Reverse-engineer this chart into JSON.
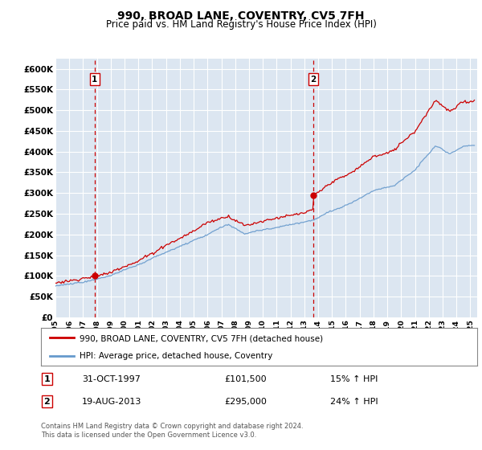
{
  "title": "990, BROAD LANE, COVENTRY, CV5 7FH",
  "subtitle": "Price paid vs. HM Land Registry's House Price Index (HPI)",
  "ylabel_ticks": [
    "£0",
    "£50K",
    "£100K",
    "£150K",
    "£200K",
    "£250K",
    "£300K",
    "£350K",
    "£400K",
    "£450K",
    "£500K",
    "£550K",
    "£600K"
  ],
  "ytick_vals": [
    0,
    50000,
    100000,
    150000,
    200000,
    250000,
    300000,
    350000,
    400000,
    450000,
    500000,
    550000,
    600000
  ],
  "ylim": [
    0,
    625000
  ],
  "xlim_start": 1995.0,
  "xlim_end": 2025.5,
  "background_color": "#dce6f1",
  "grid_color": "#ffffff",
  "sale1_x": 1997.833,
  "sale1_y": 101500,
  "sale2_x": 2013.633,
  "sale2_y": 295000,
  "sale_color": "#cc0000",
  "hpi_color": "#6699cc",
  "legend_label_red": "990, BROAD LANE, COVENTRY, CV5 7FH (detached house)",
  "legend_label_blue": "HPI: Average price, detached house, Coventry",
  "annotation1_label": "1",
  "annotation2_label": "2",
  "table_row1": [
    "1",
    "31-OCT-1997",
    "£101,500",
    "15% ↑ HPI"
  ],
  "table_row2": [
    "2",
    "19-AUG-2013",
    "£295,000",
    "24% ↑ HPI"
  ],
  "footer": "Contains HM Land Registry data © Crown copyright and database right 2024.\nThis data is licensed under the Open Government Licence v3.0."
}
